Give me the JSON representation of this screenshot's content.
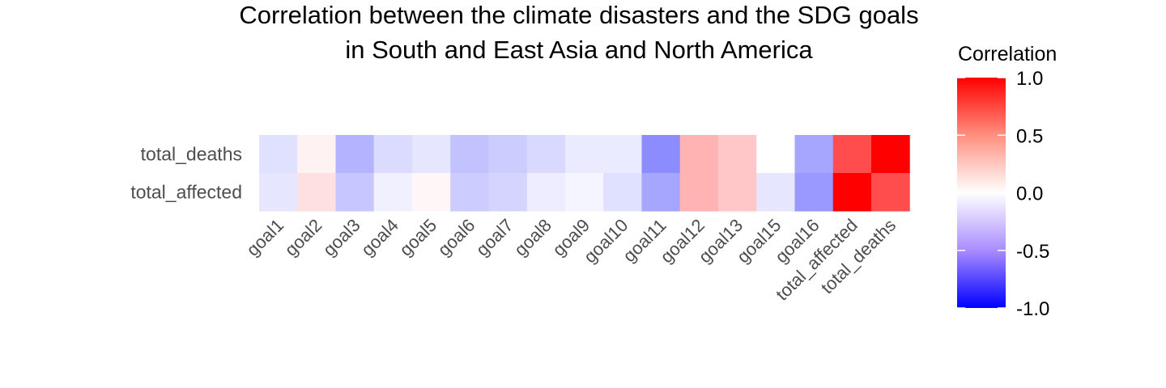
{
  "chart_data": {
    "type": "heatmap",
    "title": "Correlation between the climate disasters and the SDG goals\nin South and East Asia and North America",
    "title_lines": [
      "Correlation between the climate disasters and the SDG goals",
      "in South and East Asia and North America"
    ],
    "x_categories": [
      "goal1",
      "goal2",
      "goal3",
      "goal4",
      "goal5",
      "goal6",
      "goal7",
      "goal8",
      "goal9",
      "goal10",
      "goal11",
      "goal12",
      "goal13",
      "goal15",
      "goal16",
      "total_affected",
      "total_deaths"
    ],
    "y_categories": [
      "total_deaths",
      "total_affected"
    ],
    "values": [
      [
        -0.12,
        0.05,
        -0.3,
        -0.14,
        -0.1,
        -0.24,
        -0.2,
        -0.15,
        -0.08,
        -0.08,
        -0.45,
        0.3,
        0.22,
        0.0,
        -0.35,
        0.7,
        1.0
      ],
      [
        -0.1,
        0.12,
        -0.22,
        -0.06,
        0.03,
        -0.2,
        -0.17,
        -0.07,
        -0.04,
        -0.12,
        -0.35,
        0.3,
        0.22,
        -0.1,
        -0.4,
        1.0,
        0.7
      ]
    ],
    "legend": {
      "title": "Correlation",
      "position": "right",
      "ticks": [
        "1.0",
        "0.5",
        "0.0",
        "-0.5",
        "-1.0"
      ],
      "tick_values": [
        1.0,
        0.5,
        0.0,
        -0.5,
        -1.0
      ],
      "range": [
        -1,
        1
      ]
    },
    "colors": {
      "low": "#0000ff",
      "mid": "#ffffff",
      "high": "#ff0000"
    },
    "xlabel": "",
    "ylabel": "",
    "grid": false
  }
}
